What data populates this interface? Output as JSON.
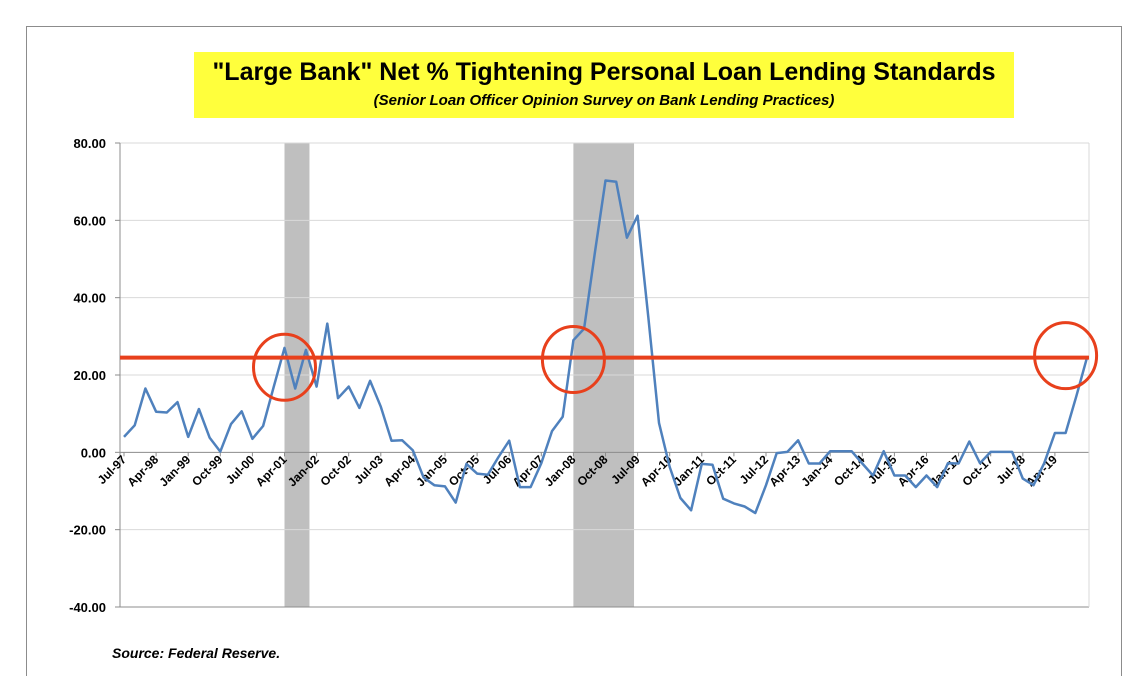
{
  "chart_data": {
    "type": "line",
    "title": "\"Large Bank\" Net % Tightening Personal  Loan Lending Standards",
    "subtitle": "(Senior Loan Officer Opinion Survey on Bank Lending Practices)",
    "source": "Source: Federal Reserve.",
    "xlabel": "",
    "ylabel": "",
    "ylim": [
      -40,
      80
    ],
    "yticks": [
      "80.00",
      "60.00",
      "40.00",
      "20.00",
      "0.00",
      "-20.00",
      "-40.00"
    ],
    "ytick_values": [
      80,
      60,
      40,
      20,
      0,
      -20,
      -40
    ],
    "xtick_labels": [
      "Jul-97",
      "Apr-98",
      "Jan-99",
      "Oct-99",
      "Jul-00",
      "Apr-01",
      "Jan-02",
      "Oct-02",
      "Jul-03",
      "Apr-04",
      "Jan-05",
      "Oct-05",
      "Jul-06",
      "Apr-07",
      "Jan-08",
      "Oct-08",
      "Jul-09",
      "Apr-10",
      "Jan-11",
      "Oct-11",
      "Jul-12",
      "Apr-13",
      "Jan-14",
      "Oct-14",
      "Jul-15",
      "Apr-16",
      "Jan-17",
      "Oct-17",
      "Jul-18",
      "Apr-19"
    ],
    "grid": true,
    "line_color": "#4f81bd",
    "reference_line": {
      "value": 24.5,
      "color": "#e8401c"
    },
    "shaded_periods": [
      {
        "start": "Apr-01",
        "end": "Nov-01",
        "color": "#bfbfbf"
      },
      {
        "start": "Jan-08",
        "end": "Jun-09",
        "color": "#bfbfbf"
      }
    ],
    "highlight_circles": [
      {
        "at": "Apr-01",
        "value": 22,
        "color": "#e8401c"
      },
      {
        "at": "Jan-08",
        "value": 24,
        "color": "#e8401c"
      },
      {
        "at": "Jul-19",
        "value": 25,
        "color": "#e8401c"
      }
    ],
    "series": [
      {
        "color": "#4f81bd",
        "values": [
          4,
          7,
          16.5,
          10.5,
          10.3,
          13,
          4,
          11.2,
          3.8,
          0.2,
          7.3,
          10.6,
          3.5,
          6.8,
          17,
          27,
          16.5,
          26.5,
          17,
          33.3,
          14,
          17,
          11.5,
          18.5,
          11.8,
          3,
          3.1,
          0.5,
          -6.5,
          -8.5,
          -8.8,
          -13,
          -3,
          -5.5,
          -5.8,
          -1.2,
          3,
          -9,
          -9,
          -2.8,
          5.5,
          9.2,
          29,
          32,
          51.5,
          70.3,
          70,
          55.5,
          61.2,
          35,
          7.6,
          -3.8,
          -11.8,
          -15,
          -3,
          -3.2,
          -12,
          -13.2,
          -14,
          -15.7,
          -8.5,
          -0.2,
          0.1,
          3.1,
          -2.9,
          -2.9,
          0.3,
          0.3,
          0.3,
          -2.9,
          -6,
          0.3,
          -6,
          -6,
          -9,
          -6,
          -9,
          -2.8,
          -2.9,
          2.8,
          -2.8,
          0.1,
          0.1,
          0.1,
          -6.8,
          -8.5,
          -2.8,
          5,
          5,
          14.5,
          24.5
        ]
      }
    ]
  }
}
